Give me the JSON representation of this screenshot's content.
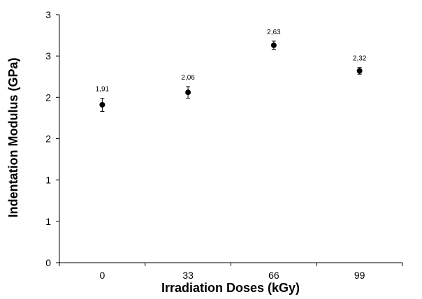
{
  "chart_data": {
    "type": "scatter",
    "title": "",
    "xlabel": "Irradiation Doses (kGy)",
    "ylabel": "Indentation Modulus (GPa)",
    "categories": [
      "0",
      "33",
      "66",
      "99"
    ],
    "y_tick_labels": [
      "0",
      "1",
      "1",
      "2",
      "2",
      "3",
      "3"
    ],
    "ylim": [
      0,
      3
    ],
    "grid": false,
    "legend": "none",
    "marker_color": "#000000",
    "series": [
      {
        "values": [
          1.91,
          2.06,
          2.63,
          2.32
        ],
        "labels": [
          "1,91",
          "2,06",
          "2,63",
          "2,32"
        ],
        "error": [
          0.08,
          0.07,
          0.05,
          0.04
        ]
      }
    ]
  }
}
